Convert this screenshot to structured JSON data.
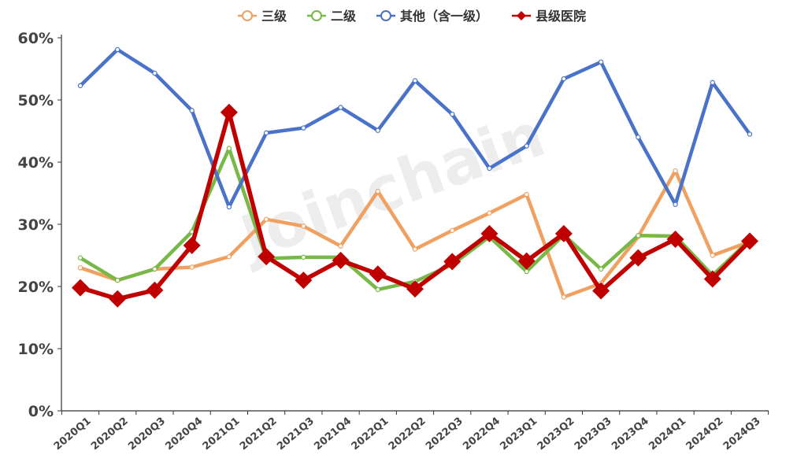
{
  "watermark": "Joinchain",
  "chart_data": {
    "type": "line",
    "title": "",
    "xlabel": "",
    "ylabel": "",
    "x": [
      "2020Q1",
      "2020Q2",
      "2020Q3",
      "2020Q4",
      "2021Q1",
      "2021Q2",
      "2021Q3",
      "2021Q4",
      "2022Q1",
      "2022Q2",
      "2022Q3",
      "2022Q4",
      "2023Q1",
      "2023Q2",
      "2023Q3",
      "2023Q4",
      "2024Q1",
      "2024Q2",
      "2024Q3"
    ],
    "ylim": [
      0,
      60
    ],
    "yticks": [
      "0%",
      "10%",
      "20%",
      "30%",
      "40%",
      "50%",
      "60%"
    ],
    "ytick_values": [
      0,
      10,
      20,
      30,
      40,
      50,
      60
    ],
    "legend_position": "top-center",
    "grid": false,
    "series": [
      {
        "name": "三级",
        "color": "#f0a060",
        "marker": "circle",
        "values": [
          23.0,
          21.0,
          22.8,
          23.1,
          24.8,
          30.8,
          29.7,
          26.5,
          35.3,
          26.0,
          29.0,
          31.8,
          34.8,
          18.3,
          20.5,
          28.0,
          38.6,
          25.0,
          27.2
        ]
      },
      {
        "name": "二级",
        "color": "#78b848",
        "marker": "circle",
        "values": [
          24.6,
          21.0,
          22.8,
          28.8,
          42.2,
          24.5,
          24.7,
          24.7,
          19.5,
          20.8,
          23.5,
          28.0,
          22.4,
          28.3,
          22.8,
          28.2,
          28.1,
          21.8,
          27.5
        ]
      },
      {
        "name": "其他（含一级）",
        "color": "#4a72c8",
        "marker": "circle",
        "values": [
          52.3,
          58.1,
          54.3,
          48.3,
          32.8,
          44.7,
          45.5,
          48.8,
          45.1,
          53.1,
          47.7,
          39.0,
          42.6,
          53.4,
          56.1,
          44.0,
          33.2,
          52.8,
          44.5
        ]
      },
      {
        "name": "县级医院",
        "color": "#c00000",
        "marker": "diamond",
        "values": [
          19.8,
          18.0,
          19.4,
          26.6,
          48.0,
          24.8,
          21.0,
          24.2,
          22.0,
          19.6,
          24.0,
          28.5,
          24.1,
          28.5,
          19.3,
          24.6,
          27.6,
          21.2,
          27.3
        ]
      }
    ]
  }
}
